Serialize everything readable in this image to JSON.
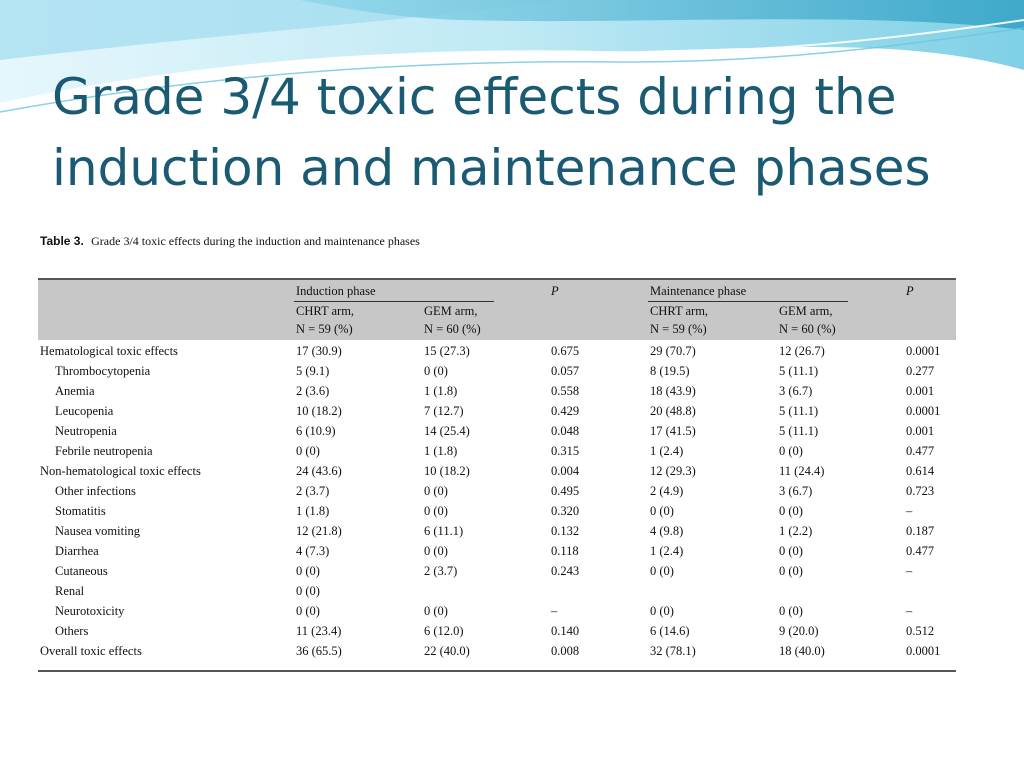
{
  "slide": {
    "title": "Grade 3/4 toxic effects during the induction and maintenance phases"
  },
  "table": {
    "caption_label": "Table 3.",
    "caption_text": "Grade 3/4 toxic effects during the induction and maintenance phases",
    "header": {
      "induction_phase": "Induction phase",
      "maintenance_phase": "Maintenance phase",
      "p": "P",
      "chrt_arm": "CHRT arm,",
      "gem_arm": "GEM arm,",
      "n_chrt_ind": "N = 59 (%)",
      "n_gem_ind": "N = 60 (%)",
      "n_chrt_maint": "N = 59 (%)",
      "n_gem_maint": "N = 60 (%)"
    },
    "rows": [
      {
        "name": "Hematological toxic effects",
        "sub": false,
        "v": [
          "17 (30.9)",
          "15 (27.3)",
          "0.675",
          "29 (70.7)",
          "12 (26.7)",
          "0.0001"
        ]
      },
      {
        "name": "Thrombocytopenia",
        "sub": true,
        "v": [
          "5 (9.1)",
          "0 (0)",
          "0.057",
          "8 (19.5)",
          "5 (11.1)",
          "0.277"
        ]
      },
      {
        "name": "Anemia",
        "sub": true,
        "v": [
          "2 (3.6)",
          "1 (1.8)",
          "0.558",
          "18 (43.9)",
          "3 (6.7)",
          "0.001"
        ]
      },
      {
        "name": "Leucopenia",
        "sub": true,
        "v": [
          "10 (18.2)",
          "7 (12.7)",
          "0.429",
          "20 (48.8)",
          "5 (11.1)",
          "0.0001"
        ]
      },
      {
        "name": "Neutropenia",
        "sub": true,
        "v": [
          "6 (10.9)",
          "14 (25.4)",
          "0.048",
          "17 (41.5)",
          "5 (11.1)",
          "0.001"
        ]
      },
      {
        "name": "Febrile neutropenia",
        "sub": true,
        "v": [
          "0 (0)",
          "1 (1.8)",
          "0.315",
          "1 (2.4)",
          "0 (0)",
          "0.477"
        ]
      },
      {
        "name": "Non-hematological toxic effects",
        "sub": false,
        "v": [
          "24 (43.6)",
          "10 (18.2)",
          "0.004",
          "12 (29.3)",
          "11 (24.4)",
          "0.614"
        ]
      },
      {
        "name": "Other infections",
        "sub": true,
        "v": [
          "2 (3.7)",
          "0 (0)",
          "0.495",
          "2 (4.9)",
          "3 (6.7)",
          "0.723"
        ]
      },
      {
        "name": "Stomatitis",
        "sub": true,
        "v": [
          "1 (1.8)",
          "0 (0)",
          "0.320",
          "0 (0)",
          "0 (0)",
          "–"
        ]
      },
      {
        "name": "Nausea vomiting",
        "sub": true,
        "v": [
          "12 (21.8)",
          "6 (11.1)",
          "0.132",
          "4 (9.8)",
          "1 (2.2)",
          "0.187"
        ]
      },
      {
        "name": "Diarrhea",
        "sub": true,
        "v": [
          "4 (7.3)",
          "0 (0)",
          "0.118",
          "1 (2.4)",
          "0 (0)",
          "0.477"
        ]
      },
      {
        "name": "Cutaneous",
        "sub": true,
        "v": [
          "0 (0)",
          "2 (3.7)",
          "0.243",
          "0 (0)",
          "0 (0)",
          "–"
        ]
      },
      {
        "name": "Renal",
        "sub": true,
        "v": [
          "0 (0)",
          "",
          "",
          "",
          "",
          ""
        ]
      },
      {
        "name": "Neurotoxicity",
        "sub": true,
        "v": [
          "0 (0)",
          "0 (0)",
          "–",
          "0 (0)",
          "0 (0)",
          "–"
        ]
      },
      {
        "name": "Others",
        "sub": true,
        "v": [
          "11 (23.4)",
          "6 (12.0)",
          "0.140",
          "6 (14.6)",
          "9 (20.0)",
          "0.512"
        ]
      },
      {
        "name": "Overall toxic effects",
        "sub": false,
        "v": [
          "36 (65.5)",
          "22 (40.0)",
          "0.008",
          "32 (78.1)",
          "18 (40.0)",
          "0.0001"
        ]
      }
    ]
  },
  "colors": {
    "title": "#1a5a73",
    "header_band": "#c7c7c7",
    "swoosh_light": "#cdeef7",
    "swoosh_mid": "#7fd0e6",
    "swoosh_dark": "#2f9fc4"
  }
}
